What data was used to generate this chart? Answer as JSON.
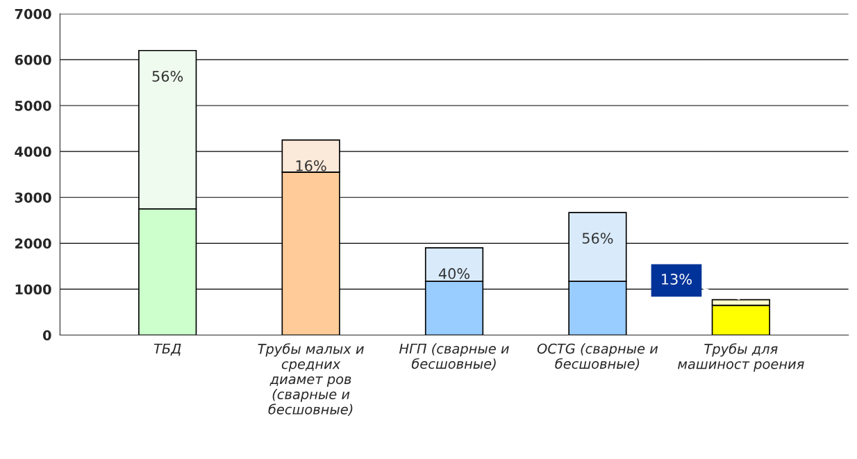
{
  "chart_data": {
    "type": "bar",
    "stacked": true,
    "categories": [
      "ТБД",
      "Трубы малых и\nсредних\nдиамет ров\n(сварные и\nбесшовные)",
      "НГП (сварные и\nбесшовные)",
      "OCTG (сварные и\nбесшовные)",
      "Трубы для\nмашиност роения"
    ],
    "series": [
      {
        "colors": [
          "#ccffcc",
          "#ffcc99",
          "#99ccff",
          "#99ccff",
          "#ffff00"
        ],
        "values": [
          2750,
          3550,
          1170,
          1170,
          650
        ]
      },
      {
        "colors": [
          "#eefbee",
          "#fbe9d9",
          "#d9ebfb",
          "#d9ebfb",
          "#ffffcc"
        ],
        "values": [
          3450,
          700,
          730,
          1500,
          120
        ]
      }
    ],
    "annotations": [
      {
        "text": "56%",
        "x": "ТБД",
        "y": 6200
      },
      {
        "text": "16%",
        "x": "Трубы малых и\nсредних\nдиамет ров\n(сварные и\nбесшовные)",
        "y": 4250
      },
      {
        "text": "40%",
        "x": "НГП (сварные и\nбесшовные)",
        "y": 1900
      },
      {
        "text": "56%",
        "x": "OCTG (сварные и\nбесшовные)",
        "y": 2670
      },
      {
        "text": "13%",
        "x": "Трубы для\nмашиност роения",
        "y": 770
      }
    ],
    "ylim": [
      0,
      7000
    ],
    "yticks": [
      0,
      1000,
      2000,
      3000,
      4000,
      5000,
      6000,
      7000
    ],
    "grid": "y",
    "legend": false
  }
}
